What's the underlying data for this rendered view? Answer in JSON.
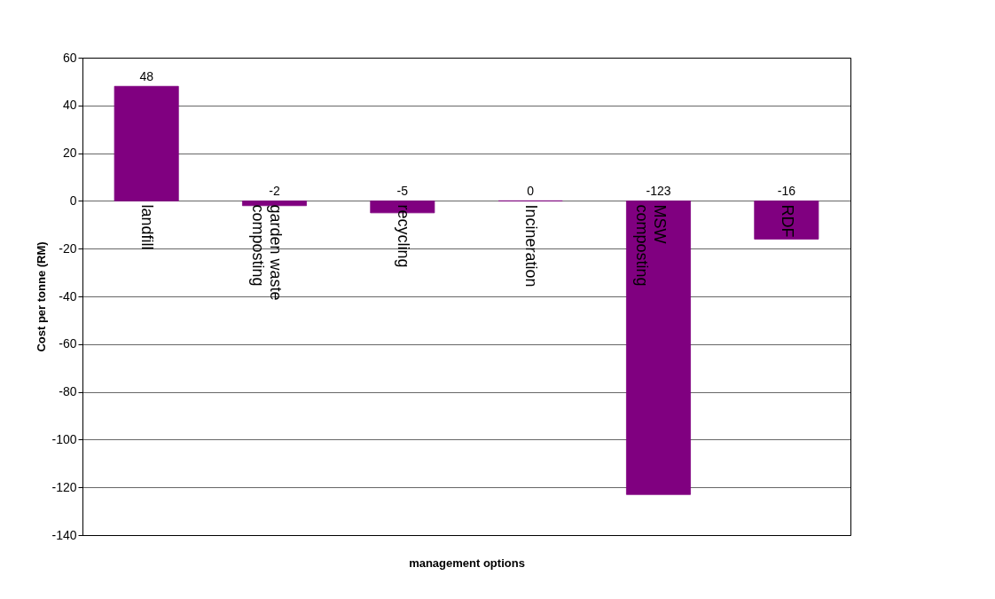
{
  "chart_data": {
    "type": "bar",
    "xlabel": "management options",
    "ylabel": "Cost per tonne (RM)",
    "categories": [
      "landfill",
      "garden waste composting",
      "recycling",
      "Incineration",
      "MSW composting",
      "RDF"
    ],
    "values": [
      48,
      -2,
      -5,
      0,
      -123,
      -16
    ],
    "color": "#800080",
    "ylim": [
      -140,
      60
    ],
    "yticks": [
      -140,
      -120,
      -100,
      -80,
      -60,
      -40,
      -20,
      0,
      20,
      40,
      60
    ],
    "grid": "y",
    "data_labels": true
  }
}
